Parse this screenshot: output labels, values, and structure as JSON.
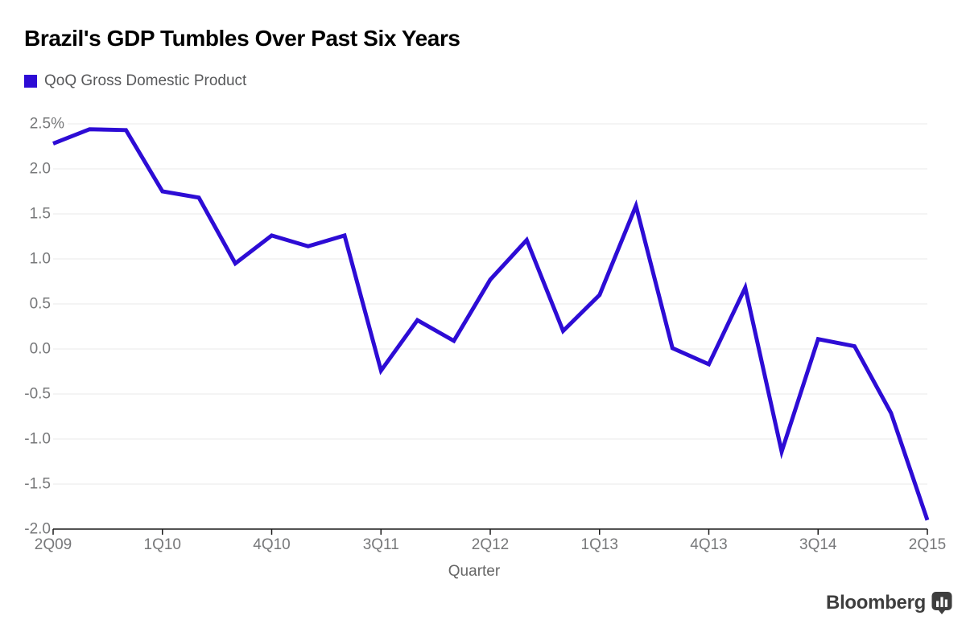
{
  "header": {
    "title": "Brazil's GDP Tumbles Over Past Six Years",
    "legend": {
      "label": "QoQ Gross Domestic Product"
    }
  },
  "chart_data": {
    "type": "line",
    "title": "Brazil's GDP Tumbles Over Past Six Years",
    "series": [
      {
        "name": "QoQ Gross Domestic Product",
        "values": [
          2.28,
          2.44,
          2.43,
          1.75,
          1.68,
          0.95,
          1.26,
          1.14,
          1.26,
          -0.24,
          0.32,
          0.09,
          0.77,
          1.21,
          0.2,
          0.6,
          1.59,
          0.01,
          -0.17,
          0.68,
          -1.14,
          0.11,
          0.03,
          -0.71,
          -1.9
        ]
      }
    ],
    "x": [
      "2Q09",
      "3Q09",
      "4Q09",
      "1Q10",
      "2Q10",
      "3Q10",
      "4Q10",
      "1Q11",
      "2Q11",
      "3Q11",
      "4Q11",
      "1Q12",
      "2Q12",
      "3Q12",
      "4Q12",
      "1Q13",
      "2Q13",
      "3Q13",
      "4Q13",
      "1Q14",
      "2Q14",
      "3Q14",
      "4Q14",
      "1Q15",
      "2Q15"
    ],
    "x_tick_labels": [
      "2Q09",
      "1Q10",
      "4Q10",
      "3Q11",
      "2Q12",
      "1Q13",
      "4Q13",
      "3Q14",
      "2Q15"
    ],
    "x_tick_every": 3,
    "y_ticks": [
      2.5,
      2.0,
      1.5,
      1.0,
      0.5,
      0.0,
      -0.5,
      -1.0,
      -1.5,
      -2.0
    ],
    "y_tick_labels": [
      "2.5%",
      "2.0",
      "1.5",
      "1.0",
      "0.5",
      "0.0",
      "-0.5",
      "-1.0",
      "-1.5",
      "-2.0"
    ],
    "xlabel": "Quarter",
    "ylabel": "",
    "ylim": [
      -2.0,
      2.5
    ],
    "grid": true,
    "legend_position": "top-left",
    "line_color": "#2d0cd5"
  },
  "colors": {
    "line": "#2d0cd5",
    "title_text": "#000000",
    "axis_text": "#77787a",
    "gridline": "#e8e8e8",
    "axis_line": "#1a1a1a",
    "logo": "#3e3e3e",
    "background": "#ffffff"
  },
  "footer": {
    "brand": "Bloomberg",
    "logo_icon": "bar-chart-bubble-icon"
  }
}
